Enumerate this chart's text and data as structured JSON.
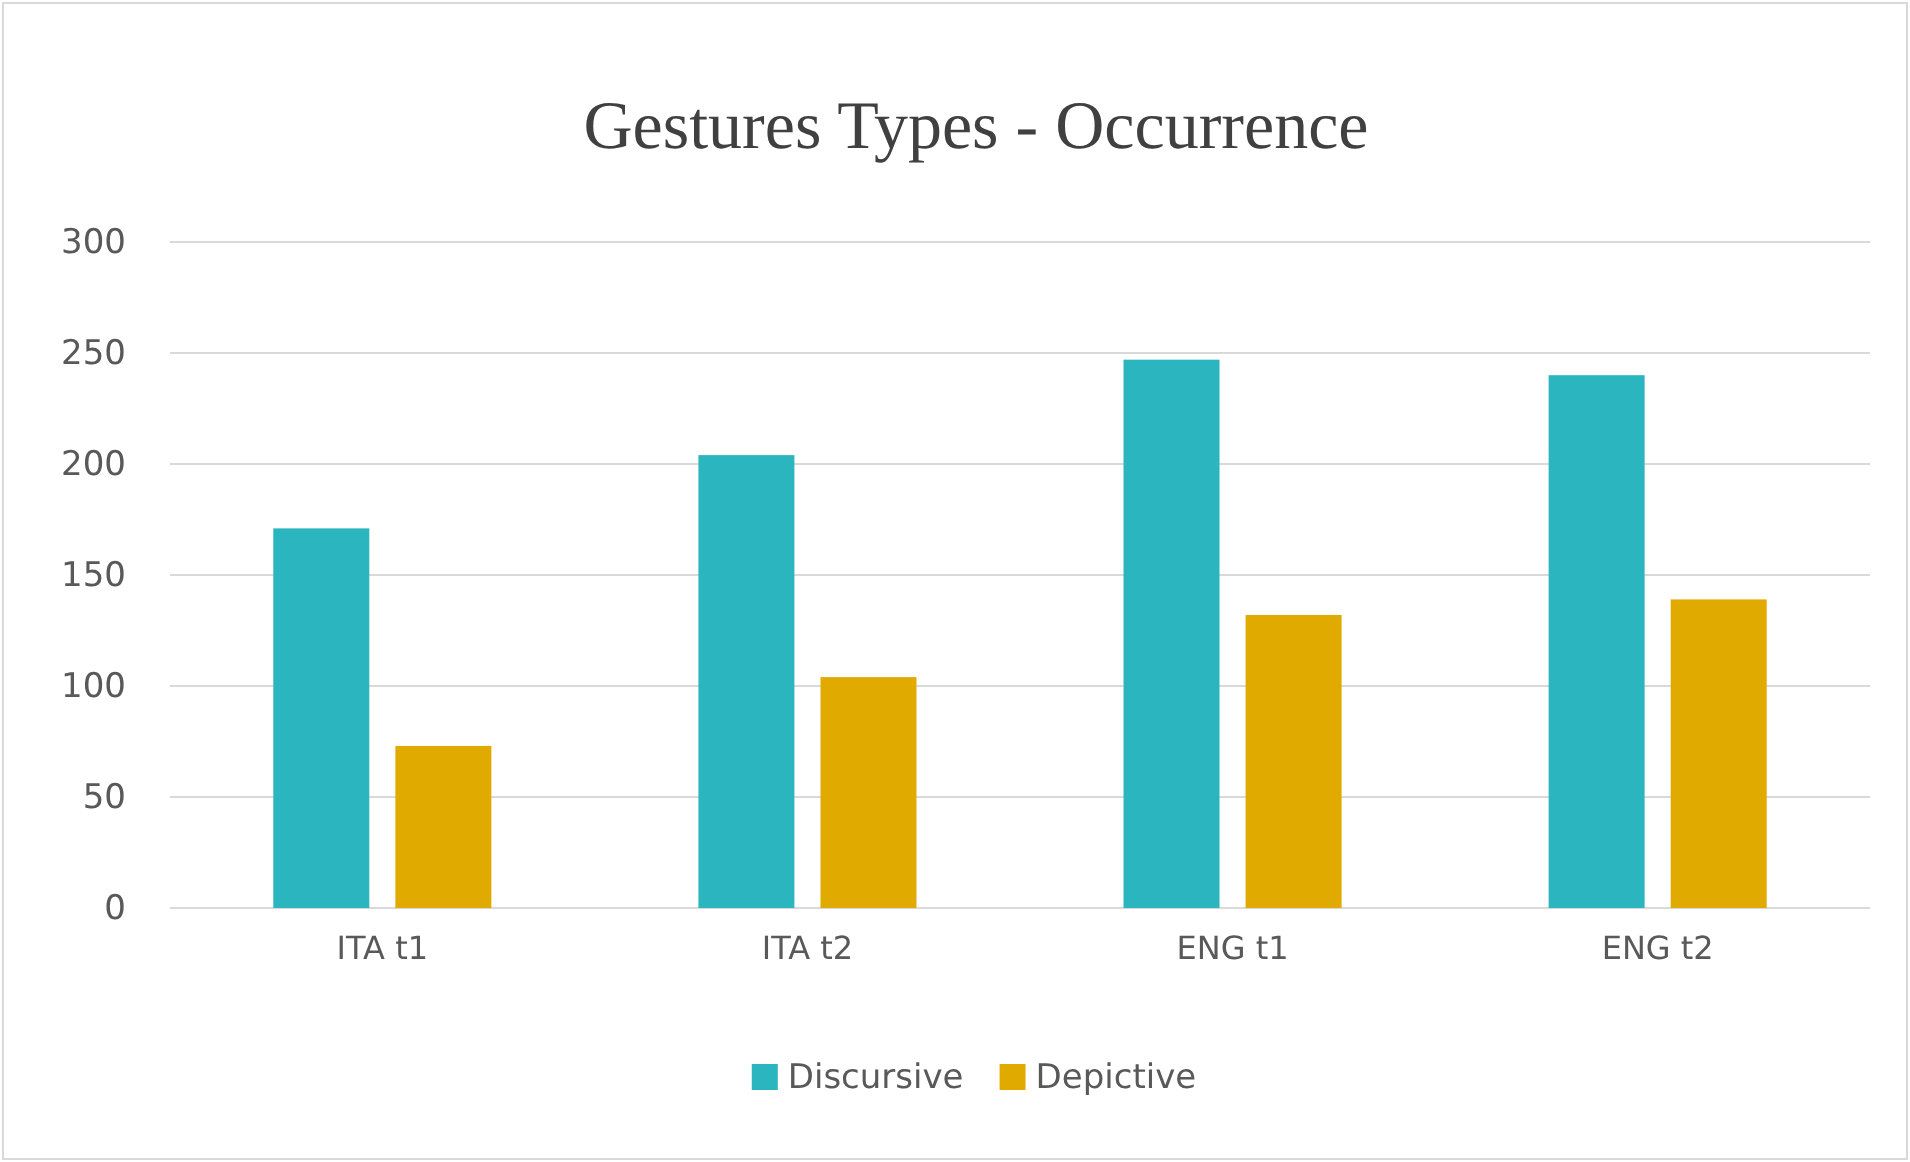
{
  "chart_data": {
    "type": "bar",
    "title": "Gestures Types - Occurrence",
    "categories": [
      "ITA t1",
      "ITA t2",
      "ENG t1",
      "ENG t2"
    ],
    "series": [
      {
        "name": "Discursive",
        "color": "#2ab5bf",
        "values": [
          171,
          204,
          247,
          240
        ]
      },
      {
        "name": "Depictive",
        "color": "#e1aa00",
        "values": [
          73,
          104,
          132,
          139
        ]
      }
    ],
    "ylim": [
      0,
      300
    ],
    "yticks": [
      0,
      50,
      100,
      150,
      200,
      250,
      300
    ],
    "grid": "y",
    "legend": "bottom"
  }
}
